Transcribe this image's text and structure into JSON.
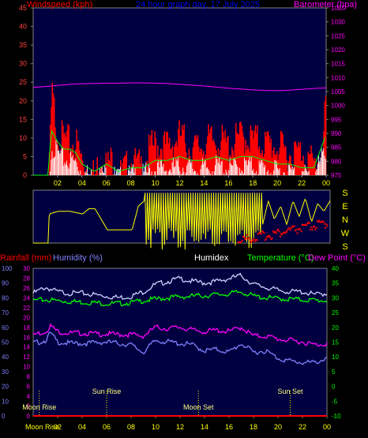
{
  "top_panel": {
    "left_title": "Windspeed (kph)",
    "center_title": "24 hour graph day, 17 July 2025",
    "right_title": "Barometer (hpa)"
  },
  "middle_panel": {
    "dir_labels": [
      "S",
      "E",
      "N",
      "W",
      "S"
    ]
  },
  "bottom_panel": {
    "rain_title": "Rainfall (mm)",
    "humidity_title": "Humidity (%)",
    "humidex_title": "Humidex",
    "temp_title": "Temperature (°C)",
    "dewpoint_title": "Dew Point (°C)",
    "events": [
      {
        "label": "Moon Rise",
        "hour": 0.5
      },
      {
        "label": "Sun Rise",
        "hour": 6.0
      },
      {
        "label": "Moon Set",
        "hour": 13.5
      },
      {
        "label": "Sun Set",
        "hour": 21.0
      }
    ],
    "bottom_left_label": "Moon Rise"
  },
  "colors": {
    "background": "#000000",
    "plot_bg": "#000040",
    "gust": "#ff0000",
    "wind_avg": "#00ff00",
    "wind_white": "#ffffff",
    "barometer": "#ff00ff",
    "direction": "#ffff00",
    "humidity": "#8080ff",
    "humidex": "#d0d0ff",
    "temperature": "#00ff00",
    "dewpoint": "#ff00ff",
    "rain": "#ff0000",
    "left_axis": "#8080ff",
    "right_axis": "#ff00ff",
    "temp_axis": "#00ff00",
    "hour_axis": "#ffff00",
    "title_left": "#ff0000",
    "title_center": "#0000ff"
  },
  "chart_data": [
    {
      "type": "line",
      "title": "24 hour graph day, 17 July 2025",
      "xlabel": "",
      "ylabel": "Windspeed (kph)",
      "y2label": "Barometer (hpa)",
      "x_ticks": [
        "02",
        "04",
        "06",
        "08",
        "10",
        "12",
        "14",
        "16",
        "18",
        "20",
        "22",
        "00"
      ],
      "ylim": [
        0,
        45
      ],
      "y_ticks": [
        0,
        5,
        10,
        15,
        20,
        25,
        30,
        35,
        40,
        45
      ],
      "y2lim": [
        975,
        1035
      ],
      "y2_ticks": [
        975,
        980,
        985,
        990,
        995,
        1000,
        1005,
        1010,
        1015,
        1020,
        1025,
        1030,
        1035
      ],
      "series": [
        {
          "name": "Barometer",
          "axis": "right",
          "x": [
            0,
            1,
            2,
            3,
            4,
            5,
            6,
            7,
            8,
            9,
            10,
            11,
            12,
            13,
            14,
            15,
            16,
            17,
            18,
            19,
            20,
            21,
            22,
            23,
            24
          ],
          "values": [
            1006.5,
            1006.8,
            1007.2,
            1007.6,
            1007.8,
            1007.9,
            1008,
            1008,
            1008.1,
            1008.1,
            1008.0,
            1007.9,
            1007.6,
            1007.3,
            1007.0,
            1006.6,
            1006.2,
            1005.9,
            1005.6,
            1005.4,
            1005.3,
            1005.5,
            1005.8,
            1006.1,
            1006.3
          ]
        },
        {
          "name": "Gust",
          "x": [
            0,
            1.2,
            1.5,
            2,
            2.5,
            3,
            3.5,
            4,
            5,
            5.5,
            6,
            6.5,
            7,
            8,
            9,
            9.5,
            10,
            11,
            12,
            13,
            14,
            15,
            16,
            17,
            18,
            19,
            20,
            21,
            22,
            23,
            23.7,
            24
          ],
          "values": [
            0,
            0,
            24,
            13,
            12,
            11,
            11,
            6,
            2,
            8,
            5,
            7,
            2,
            6,
            4,
            9,
            11,
            10,
            13,
            9,
            11,
            12,
            10,
            13,
            12,
            11,
            10,
            8,
            9,
            5,
            9,
            28
          ]
        },
        {
          "name": "Average",
          "x": [
            0,
            1.2,
            1.5,
            2,
            2.5,
            3,
            3.5,
            4,
            5,
            6,
            7,
            8,
            9,
            10,
            11,
            12,
            13,
            14,
            15,
            16,
            17,
            18,
            19,
            20,
            21,
            22,
            23,
            24
          ],
          "values": [
            0,
            0,
            12,
            9,
            7,
            7,
            6,
            3,
            1,
            3,
            1,
            2,
            2,
            4,
            4,
            5,
            4,
            4,
            5,
            4,
            5,
            5,
            4,
            3,
            3,
            2,
            2,
            11
          ]
        }
      ]
    },
    {
      "type": "line",
      "title": "",
      "xlabel": "",
      "ylabel": "",
      "y_ticks": [
        "S",
        "E",
        "N",
        "W",
        "S"
      ],
      "series": [
        {
          "name": "Direction",
          "x": [
            0,
            1.2,
            1.3,
            2,
            3,
            4,
            4.5,
            5,
            6,
            7,
            8,
            8.5,
            9,
            9.5,
            10,
            10.5,
            11,
            11.5,
            12,
            12.5,
            13,
            13.5,
            14,
            14.5,
            15,
            15.5,
            16,
            16.5,
            17,
            17.5,
            18,
            18.5,
            19,
            19.5,
            20,
            20.5,
            21,
            21.5,
            22,
            22.5,
            23,
            23.5,
            24
          ],
          "values": [
            0,
            0,
            1.1,
            1.2,
            1.2,
            1.1,
            1.3,
            1.3,
            0.5,
            0.5,
            0.5,
            1.4,
            1.6,
            1.2,
            1.7,
            0.2,
            1.8,
            0.3,
            1.7,
            0.4,
            1.8,
            0.2,
            1.9,
            0.3,
            1.8,
            0.1,
            1.7,
            0.2,
            1.8,
            0.4,
            1.8,
            0.6,
            1.6,
            0.9,
            1.4,
            0.7,
            1.6,
            1.0,
            1.7,
            0.8,
            1.5,
            1.2,
            1.6
          ]
        }
      ]
    },
    {
      "type": "line",
      "title": "",
      "xlabel": "",
      "ylabel": "Humidity (%)",
      "y2label": "Temperature (°C)",
      "x_ticks": [
        "02",
        "04",
        "06",
        "08",
        "10",
        "12",
        "14",
        "16",
        "18",
        "20",
        "22",
        "00"
      ],
      "bottom_left_label": "Moon Rise",
      "rain_ticks": [
        0,
        2,
        4,
        6,
        8,
        10,
        12,
        14,
        16,
        18,
        20,
        22,
        24,
        26,
        28,
        30
      ],
      "humidity_ticks": [
        0,
        10,
        20,
        30,
        40,
        50,
        60,
        70,
        80,
        90,
        100
      ],
      "temp_ticks": [
        -10,
        -5,
        0,
        5,
        10,
        15,
        20,
        25,
        30,
        35,
        40
      ],
      "ylim": [
        0,
        100
      ],
      "y2lim": [
        -10,
        40
      ],
      "series": [
        {
          "name": "Humidex",
          "axis": "right",
          "x": [
            0,
            1,
            2,
            3,
            4,
            5,
            6,
            7,
            8,
            9,
            10,
            11,
            12,
            13,
            14,
            15,
            16,
            17,
            18,
            19,
            20,
            21,
            22,
            23,
            24
          ],
          "values": [
            32,
            34,
            32.5,
            32,
            32,
            31.5,
            31,
            30.5,
            31,
            32.5,
            35,
            36,
            37,
            36,
            35.5,
            36,
            37,
            38,
            35,
            34,
            33,
            32.5,
            32.5,
            31.5,
            32
          ]
        },
        {
          "name": "Temperature",
          "axis": "right",
          "x": [
            0,
            1,
            2,
            3,
            4,
            5,
            6,
            7,
            8,
            9,
            10,
            11,
            12,
            13,
            14,
            15,
            16,
            17,
            18,
            19,
            20,
            21,
            22,
            23,
            24
          ],
          "values": [
            29.5,
            29.8,
            29.5,
            29.2,
            29,
            28.8,
            28.5,
            28.5,
            28.8,
            29.5,
            30,
            30.5,
            30.8,
            31,
            31.2,
            31.5,
            31.8,
            32.5,
            31,
            30.5,
            30.2,
            30,
            29.8,
            29.6,
            29.5
          ]
        },
        {
          "name": "Dew Point",
          "axis": "right",
          "x": [
            0,
            1,
            1.4,
            2,
            3,
            4,
            5,
            6,
            7,
            8,
            9,
            10,
            11,
            12,
            13,
            14,
            15,
            16,
            17,
            18,
            19,
            20,
            21,
            22,
            23,
            24
          ],
          "values": [
            18,
            19,
            21,
            19,
            18.5,
            18.5,
            18.2,
            18.2,
            18,
            18,
            17.5,
            20.5,
            20,
            20.5,
            19.5,
            19,
            19.5,
            19,
            20.5,
            17.5,
            17.5,
            16.5,
            16,
            15.5,
            14.5,
            15
          ]
        },
        {
          "name": "Humidity",
          "axis": "left",
          "x": [
            0,
            1,
            1.4,
            2,
            3,
            4,
            5,
            6,
            7,
            8,
            9,
            10,
            11,
            12,
            13,
            14,
            15,
            16,
            17,
            18,
            19,
            20,
            21,
            22,
            23,
            24
          ],
          "values": [
            50,
            52,
            57,
            51,
            50,
            50,
            50.5,
            51,
            50,
            49,
            44,
            52,
            51,
            50,
            49,
            45,
            46,
            44,
            50,
            44,
            45,
            40,
            38,
            37,
            37,
            40
          ]
        },
        {
          "name": "Rainfall",
          "axis": "rain",
          "x": [
            0,
            24
          ],
          "values": [
            0,
            0
          ]
        }
      ]
    }
  ]
}
